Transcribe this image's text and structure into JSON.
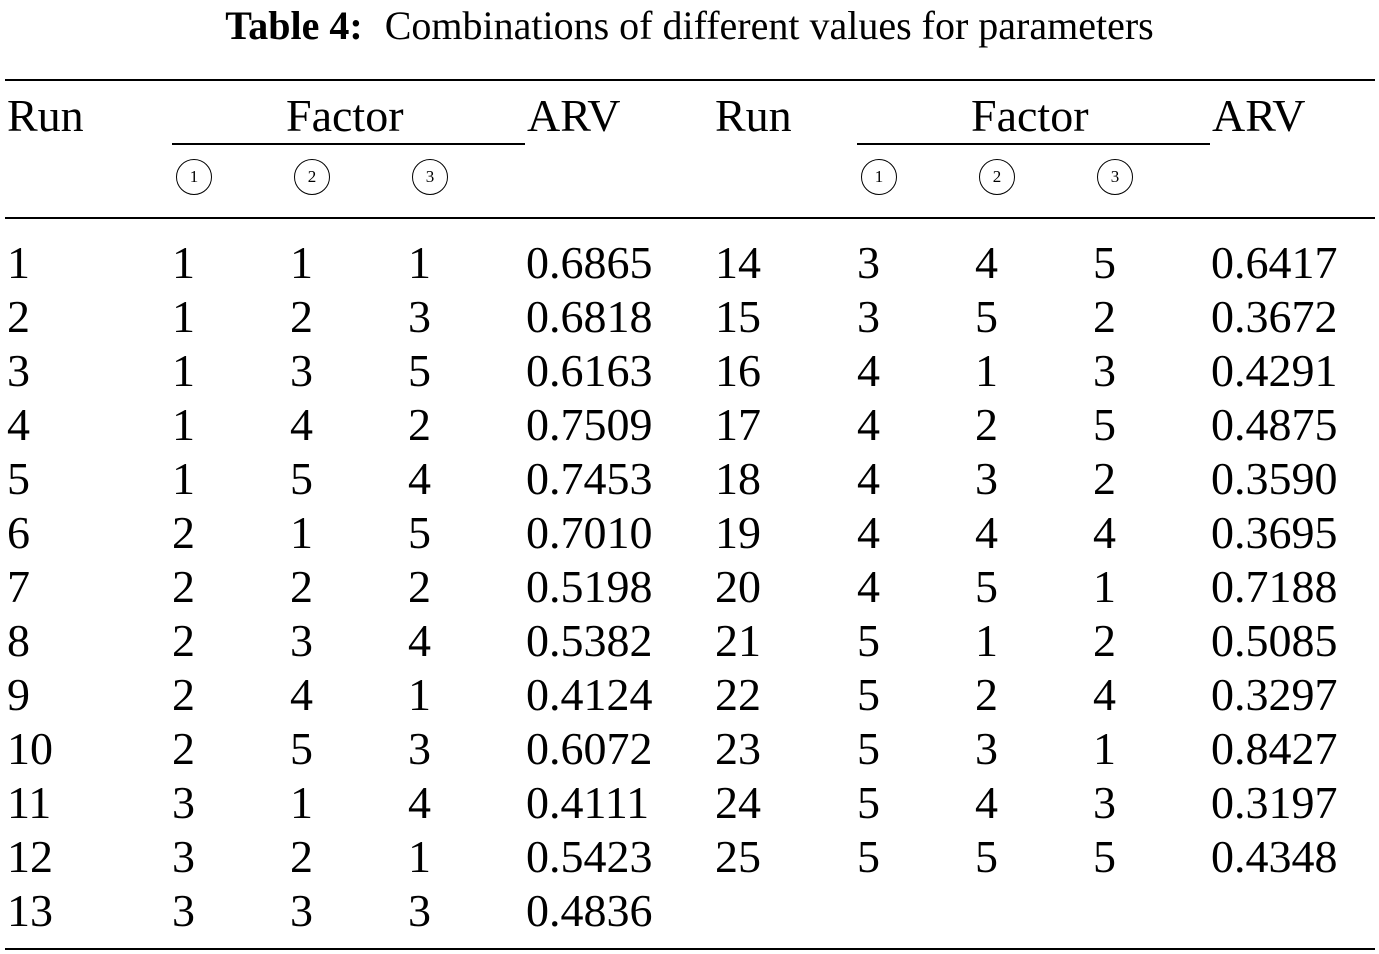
{
  "caption": {
    "label": "Table 4:",
    "text": "Combinations of different values for parameters"
  },
  "headers": {
    "run": "Run",
    "factor": "Factor",
    "arv": "ARV",
    "factor_numbers": [
      "1",
      "2",
      "3"
    ]
  },
  "left_rows": [
    {
      "run": "1",
      "f1": "1",
      "f2": "1",
      "f3": "1",
      "arv": "0.6865"
    },
    {
      "run": "2",
      "f1": "1",
      "f2": "2",
      "f3": "3",
      "arv": "0.6818"
    },
    {
      "run": "3",
      "f1": "1",
      "f2": "3",
      "f3": "5",
      "arv": "0.6163"
    },
    {
      "run": "4",
      "f1": "1",
      "f2": "4",
      "f3": "2",
      "arv": "0.7509"
    },
    {
      "run": "5",
      "f1": "1",
      "f2": "5",
      "f3": "4",
      "arv": "0.7453"
    },
    {
      "run": "6",
      "f1": "2",
      "f2": "1",
      "f3": "5",
      "arv": "0.7010"
    },
    {
      "run": "7",
      "f1": "2",
      "f2": "2",
      "f3": "2",
      "arv": "0.5198"
    },
    {
      "run": "8",
      "f1": "2",
      "f2": "3",
      "f3": "4",
      "arv": "0.5382"
    },
    {
      "run": "9",
      "f1": "2",
      "f2": "4",
      "f3": "1",
      "arv": "0.4124"
    },
    {
      "run": "10",
      "f1": "2",
      "f2": "5",
      "f3": "3",
      "arv": "0.6072"
    },
    {
      "run": "11",
      "f1": "3",
      "f2": "1",
      "f3": "4",
      "arv": "0.4111"
    },
    {
      "run": "12",
      "f1": "3",
      "f2": "2",
      "f3": "1",
      "arv": "0.5423"
    },
    {
      "run": "13",
      "f1": "3",
      "f2": "3",
      "f3": "3",
      "arv": "0.4836"
    }
  ],
  "right_rows": [
    {
      "run": "14",
      "f1": "3",
      "f2": "4",
      "f3": "5",
      "arv": "0.6417"
    },
    {
      "run": "15",
      "f1": "3",
      "f2": "5",
      "f3": "2",
      "arv": "0.3672"
    },
    {
      "run": "16",
      "f1": "4",
      "f2": "1",
      "f3": "3",
      "arv": "0.4291"
    },
    {
      "run": "17",
      "f1": "4",
      "f2": "2",
      "f3": "5",
      "arv": "0.4875"
    },
    {
      "run": "18",
      "f1": "4",
      "f2": "3",
      "f3": "2",
      "arv": "0.3590"
    },
    {
      "run": "19",
      "f1": "4",
      "f2": "4",
      "f3": "4",
      "arv": "0.3695"
    },
    {
      "run": "20",
      "f1": "4",
      "f2": "5",
      "f3": "1",
      "arv": "0.7188"
    },
    {
      "run": "21",
      "f1": "5",
      "f2": "1",
      "f3": "2",
      "arv": "0.5085"
    },
    {
      "run": "22",
      "f1": "5",
      "f2": "2",
      "f3": "4",
      "arv": "0.3297"
    },
    {
      "run": "23",
      "f1": "5",
      "f2": "3",
      "f3": "1",
      "arv": "0.8427"
    },
    {
      "run": "24",
      "f1": "5",
      "f2": "4",
      "f3": "3",
      "arv": "0.3197"
    },
    {
      "run": "25",
      "f1": "5",
      "f2": "5",
      "f3": "5",
      "arv": "0.4348"
    }
  ]
}
